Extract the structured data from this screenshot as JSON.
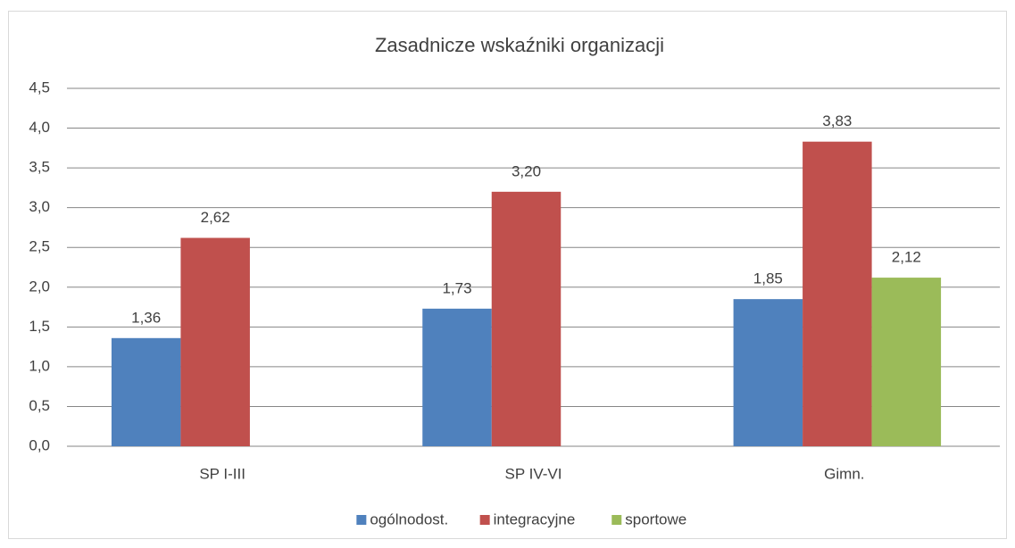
{
  "chart_data": {
    "type": "bar",
    "title": "Zasadnicze wskaźniki organizacji",
    "categories": [
      "SP I-III",
      "SP IV-VI",
      "Gimn."
    ],
    "series": [
      {
        "name": "ogólnodost.",
        "color": "#4f81bd",
        "values": [
          1.36,
          1.73,
          1.85
        ],
        "value_labels": [
          "1,36",
          "1,73",
          "1,85"
        ]
      },
      {
        "name": "integracyjne",
        "color": "#c0504d",
        "values": [
          2.62,
          3.2,
          3.83
        ],
        "value_labels": [
          "2,62",
          "3,20",
          "3,83"
        ]
      },
      {
        "name": "sportowe",
        "color": "#9bbb59",
        "values": [
          null,
          null,
          2.12
        ],
        "value_labels": [
          null,
          null,
          "2,12"
        ]
      }
    ],
    "ylim": [
      0,
      4.5
    ],
    "yticks": [
      {
        "value": 0,
        "label": "0,0"
      },
      {
        "value": 0.5,
        "label": "0,5"
      },
      {
        "value": 1,
        "label": "1,0"
      },
      {
        "value": 1.5,
        "label": "1,5"
      },
      {
        "value": 2,
        "label": "2,0"
      },
      {
        "value": 2.5,
        "label": "2,5"
      },
      {
        "value": 3,
        "label": "3,0"
      },
      {
        "value": 3.5,
        "label": "3,5"
      },
      {
        "value": 4,
        "label": "4,0"
      },
      {
        "value": 4.5,
        "label": "4,5"
      }
    ],
    "grid": true,
    "legend": "bottom"
  }
}
